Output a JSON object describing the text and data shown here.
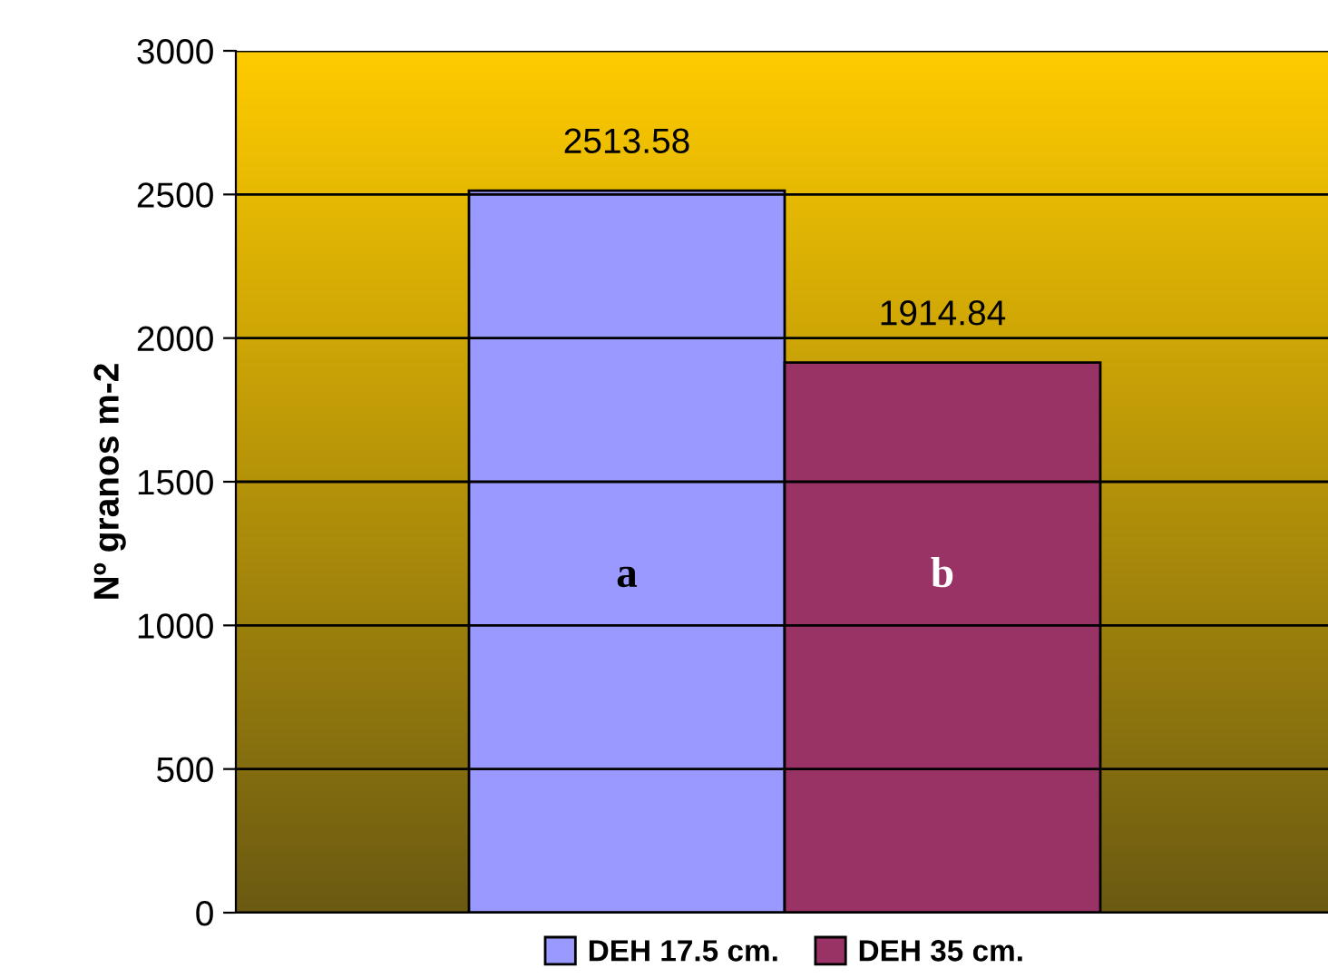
{
  "chart_data": {
    "type": "bar",
    "ylabel": "Nº granos m-2",
    "categories": [
      null
    ],
    "series": [
      {
        "name": "DEH 17.5 cm.",
        "color": "#9999ff",
        "values": [
          2513.58
        ]
      },
      {
        "name": "DEH 35 cm.",
        "color": "#993366",
        "values": [
          1914.84
        ]
      }
    ],
    "annotations": [
      "a",
      "b"
    ],
    "ylim": [
      0,
      3000
    ],
    "yticks": [
      0,
      500,
      1000,
      1500,
      2000,
      2500,
      3000
    ],
    "grid": "y",
    "legend": "bottom",
    "data_labels": true
  }
}
